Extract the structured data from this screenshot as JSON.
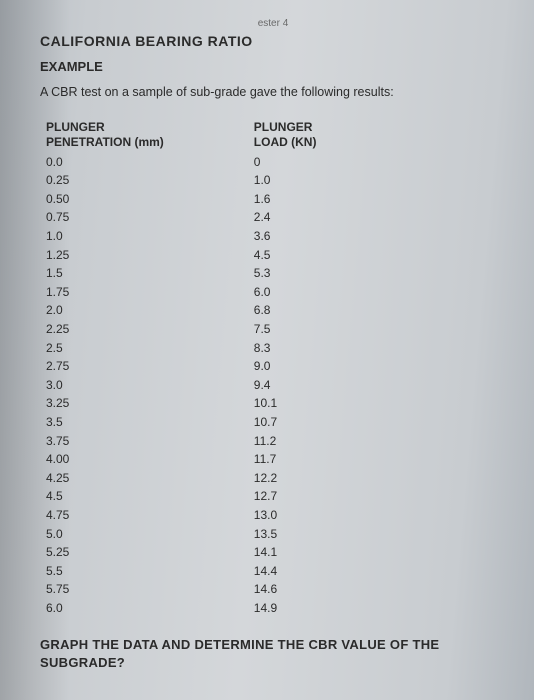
{
  "topline": "ester 4",
  "title": "CALIFORNIA BEARING RATIO",
  "subtitle": "EXAMPLE",
  "intro": "A CBR test on a sample of sub-grade gave the following results:",
  "table": {
    "col1_header": "PLUNGER\nPENETRATION (mm)",
    "col2_header": "PLUNGER\nLOAD (KN)",
    "rows": [
      {
        "p": "0.0",
        "l": "0"
      },
      {
        "p": "0.25",
        "l": "1.0"
      },
      {
        "p": "0.50",
        "l": "1.6"
      },
      {
        "p": "0.75",
        "l": "2.4"
      },
      {
        "p": "1.0",
        "l": "3.6"
      },
      {
        "p": "1.25",
        "l": "4.5"
      },
      {
        "p": "1.5",
        "l": "5.3"
      },
      {
        "p": "1.75",
        "l": "6.0"
      },
      {
        "p": "2.0",
        "l": "6.8"
      },
      {
        "p": "2.25",
        "l": "7.5"
      },
      {
        "p": "2.5",
        "l": "8.3"
      },
      {
        "p": "2.75",
        "l": "9.0"
      },
      {
        "p": "3.0",
        "l": "9.4"
      },
      {
        "p": "3.25",
        "l": "10.1"
      },
      {
        "p": "3.5",
        "l": "10.7"
      },
      {
        "p": "3.75",
        "l": "11.2"
      },
      {
        "p": "4.00",
        "l": "11.7"
      },
      {
        "p": "4.25",
        "l": "12.2"
      },
      {
        "p": "4.5",
        "l": "12.7"
      },
      {
        "p": "4.75",
        "l": "13.0"
      },
      {
        "p": "5.0",
        "l": "13.5"
      },
      {
        "p": "5.25",
        "l": "14.1"
      },
      {
        "p": "5.5",
        "l": "14.4"
      },
      {
        "p": "5.75",
        "l": "14.6"
      },
      {
        "p": "6.0",
        "l": "14.9"
      }
    ]
  },
  "question": "GRAPH THE DATA AND DETERMINE THE CBR VALUE OF THE SUBGRADE?"
}
